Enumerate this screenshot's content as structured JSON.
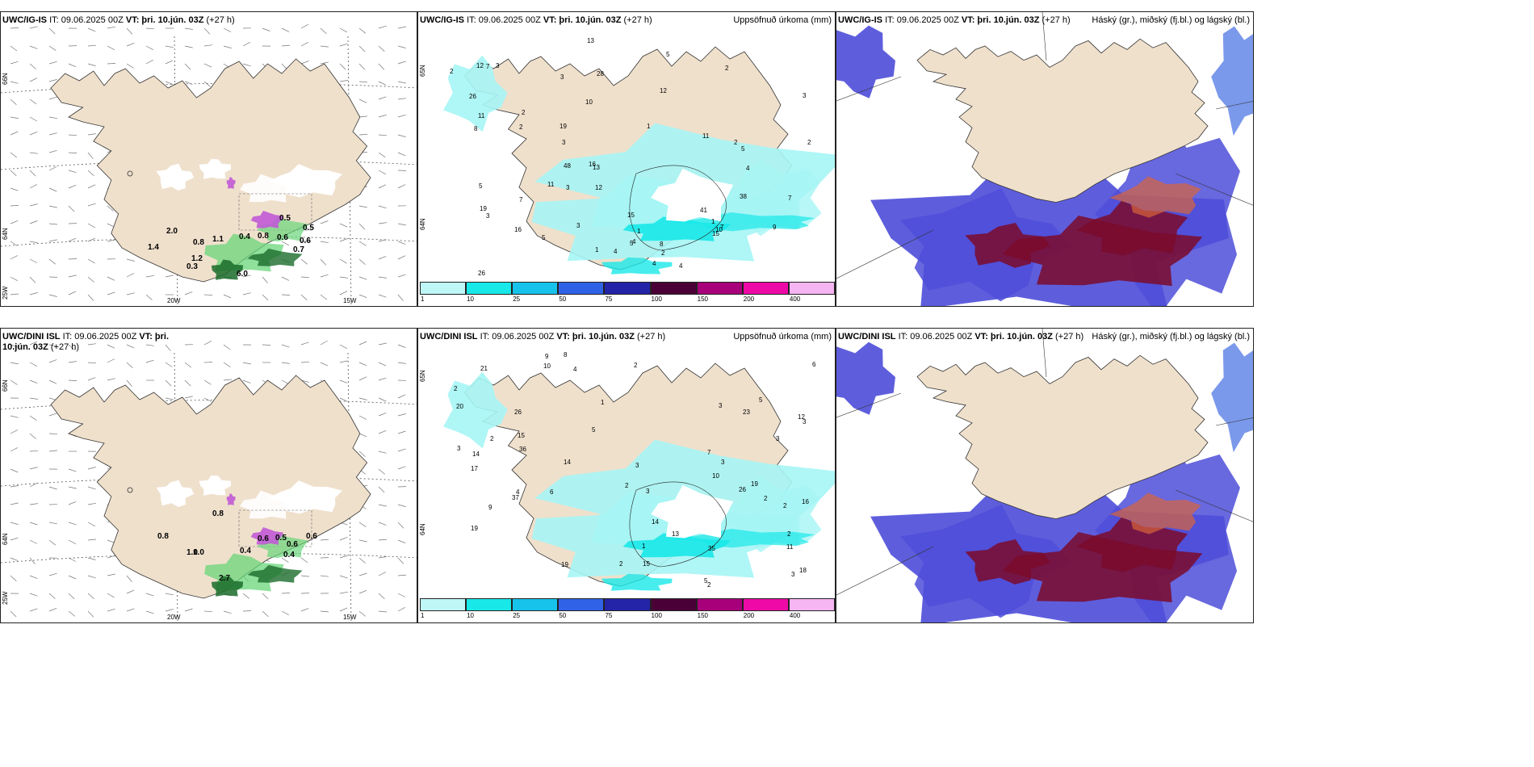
{
  "panels": [
    {
      "model": "UWC/IG-IS",
      "init": "IT: 09.06.2025 00Z",
      "vt_label": "VT:",
      "vt": "þri. 10.jún. 03Z",
      "lead": "(+27 h)",
      "right_title": "",
      "type": "wind"
    },
    {
      "model": "UWC/IG-IS",
      "init": "IT: 09.06.2025 00Z",
      "vt_label": "VT:",
      "vt": "þri. 10.jún. 03Z",
      "lead": "(+27 h)",
      "right_title": "Uppsöfnuð úrkoma (mm)",
      "type": "precip"
    },
    {
      "model": "UWC/IG-IS",
      "init": "IT: 09.06.2025 00Z",
      "vt_label": "",
      "vt": "",
      "lead": "",
      "right_title": "Háský (gr.), miðský (fj.bl.) og lágský (bl.)",
      "type": "cloud"
    },
    {
      "model": "UWC/DINI ISL",
      "init": "IT: 09.06.2025 00Z",
      "vt_label": "VT:",
      "vt": "þri. 10.jún. 03Z",
      "lead": "(+27 h)",
      "right_title": "",
      "type": "wind"
    },
    {
      "model": "UWC/DINI ISL",
      "init": "IT: 09.06.2025 00Z",
      "vt_label": "VT:",
      "vt": "þri. 10.jún. 03Z",
      "lead": "(+27 h)",
      "right_title": "Uppsöfnuð úrkoma (mm)",
      "type": "precip"
    },
    {
      "model": "UWC/DINI ISL",
      "init": "IT: 09.06.2025 00Z",
      "vt_label": "VT:",
      "vt": "þri. 10.jún. 03Z",
      "lead": "(+27 h)",
      "right_title": "Háský (gr.), miðský (fj.bl.) og lágský (bl.)",
      "type": "cloud"
    }
  ],
  "axes": {
    "lat_66": "66N",
    "lat_64": "64N",
    "lat_65": "65N",
    "lon_25": "25W",
    "lon_20": "20W",
    "lon_15": "15W"
  },
  "colorbar": {
    "ticks": [
      "1",
      "10",
      "25",
      "50",
      "75",
      "100",
      "150",
      "200",
      "400"
    ],
    "colors": [
      "#bff7f7",
      "#19e8e8",
      "#17c3eb",
      "#2f62e6",
      "#2424a8",
      "#4a0036",
      "#a8007a",
      "#ee0aa6",
      "#f5b4f2"
    ]
  },
  "colors": {
    "land": "#efe0cc",
    "precip_light": "#a6f5f5",
    "cloud_low": "#4d4dd9",
    "cloud_high": "#7a0a2b",
    "green": "#6ad67a",
    "snow": "#c15ad6"
  },
  "labels": {
    "p1": [
      "2.0",
      "1.4",
      "0.8",
      "1.1",
      "0.4",
      "0.8",
      "0.6",
      "0.5",
      "0.6",
      "0.7",
      "0.5",
      "6.0",
      "0.3",
      "1.2"
    ],
    "p2": [
      "1",
      "1",
      "1",
      "2",
      "2",
      "3",
      "4",
      "5",
      "2",
      "2",
      "7",
      "9",
      "4",
      "4",
      "2",
      "2",
      "1",
      "10",
      "7",
      "5",
      "3",
      "4",
      "2",
      "3",
      "8",
      "5",
      "5",
      "4",
      "3",
      "19",
      "12",
      "41",
      "38",
      "15",
      "15",
      "10",
      "7",
      "7",
      "13",
      "11",
      "26",
      "16",
      "48",
      "19",
      "8",
      "12",
      "11",
      "12",
      "13",
      "28",
      "5",
      "26",
      "16",
      "11",
      "3",
      "3",
      "3"
    ],
    "p4": [
      "0.8",
      "0.8",
      "1.0",
      "0.4",
      "0.6",
      "0.5",
      "0.6",
      "0.6",
      "0.4",
      "2.7",
      "1.0"
    ],
    "p5": [
      "2",
      "2",
      "5",
      "3",
      "1",
      "5",
      "3",
      "4",
      "3",
      "2",
      "2",
      "7",
      "3",
      "2",
      "1",
      "2",
      "9",
      "4",
      "3",
      "14",
      "2",
      "3",
      "2",
      "6",
      "15",
      "16",
      "17",
      "19",
      "14",
      "37",
      "36",
      "20",
      "12",
      "26",
      "10",
      "35",
      "13",
      "18",
      "26",
      "23",
      "19",
      "15",
      "21",
      "5",
      "10",
      "19",
      "9",
      "14",
      "8",
      "2",
      "3",
      "11",
      "6",
      "3"
    ]
  }
}
